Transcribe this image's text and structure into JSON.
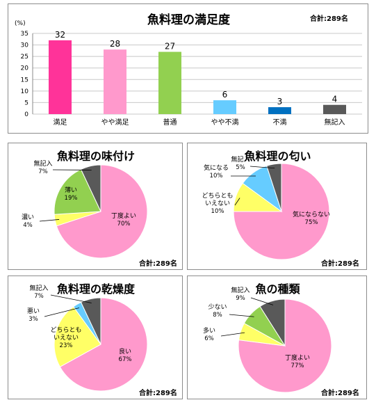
{
  "colors": {
    "pink_strong": "#ff3399",
    "pink": "#ff99cc",
    "green": "#92d050",
    "yellow": "#ffff66",
    "sky": "#66ccff",
    "blue": "#0070c0",
    "dark_gray": "#595959"
  },
  "chart_data": [
    {
      "id": "satisfaction",
      "type": "bar",
      "title": "魚料理の満足度",
      "total": "合計:289名",
      "ylabel": "(%)",
      "ylim": [
        0,
        35
      ],
      "yticks": [
        "0",
        "5",
        "10",
        "15",
        "20",
        "25",
        "30",
        "35"
      ],
      "grid": true,
      "categories": [
        "満足",
        "やや満足",
        "普通",
        "やや不満",
        "不満",
        "無記入"
      ],
      "values": [
        32,
        28,
        27,
        6,
        3,
        4
      ],
      "colors": [
        "#ff3399",
        "#ff99cc",
        "#92d050",
        "#66ccff",
        "#0070c0",
        "#595959"
      ]
    },
    {
      "id": "seasoning",
      "type": "pie",
      "title": "魚料理の味付け",
      "total": "合計:289名",
      "slices": [
        {
          "label": "丁度よい",
          "pct": "70%",
          "value": 70,
          "color": "#ff99cc"
        },
        {
          "label": "濃い",
          "pct": "4%",
          "value": 4,
          "color": "#ffff66"
        },
        {
          "label": "薄い",
          "pct": "19%",
          "value": 19,
          "color": "#92d050"
        },
        {
          "label": "無記入",
          "pct": "7%",
          "value": 7,
          "color": "#595959"
        }
      ]
    },
    {
      "id": "smell",
      "type": "pie",
      "title": "魚料理の匂い",
      "total": "合計:289名",
      "slices": [
        {
          "label": "気にならない",
          "pct": "75%",
          "value": 75,
          "color": "#ff99cc"
        },
        {
          "label": "どちらとも\nいえない",
          "pct": "10%",
          "value": 10,
          "color": "#ffff66"
        },
        {
          "label": "気になる",
          "pct": "10%",
          "value": 10,
          "color": "#66ccff"
        },
        {
          "label": "無記入",
          "pct": "5%",
          "value": 5,
          "color": "#595959"
        }
      ]
    },
    {
      "id": "dryness",
      "type": "pie",
      "title": "魚料理の乾燥度",
      "total": "合計:289名",
      "slices": [
        {
          "label": "良い",
          "pct": "67%",
          "value": 67,
          "color": "#ff99cc"
        },
        {
          "label": "どちらとも\nいえない",
          "pct": "23%",
          "value": 23,
          "color": "#ffff66"
        },
        {
          "label": "悪い",
          "pct": "3%",
          "value": 3,
          "color": "#66ccff"
        },
        {
          "label": "無記入",
          "pct": "7%",
          "value": 7,
          "color": "#595959"
        }
      ]
    },
    {
      "id": "variety",
      "type": "pie",
      "title": "魚の種類",
      "total": "合計:289名",
      "slices": [
        {
          "label": "丁度よい",
          "pct": "77%",
          "value": 77,
          "color": "#ff99cc"
        },
        {
          "label": "多い",
          "pct": "6%",
          "value": 6,
          "color": "#ffff66"
        },
        {
          "label": "少ない",
          "pct": "8%",
          "value": 8,
          "color": "#92d050"
        },
        {
          "label": "無記入",
          "pct": "9%",
          "value": 9,
          "color": "#595959"
        }
      ]
    }
  ]
}
